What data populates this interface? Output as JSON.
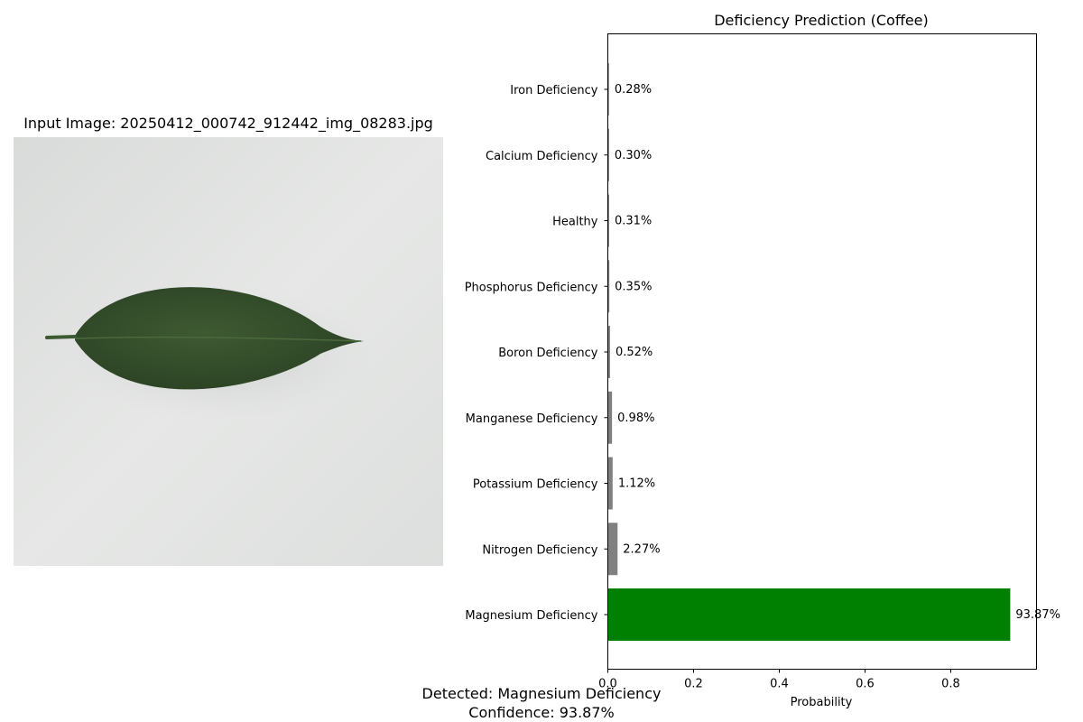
{
  "image_panel": {
    "title": "Input Image: 20250412_000742_912442_img_08283.jpg"
  },
  "chart_data": {
    "type": "bar",
    "orientation": "horizontal",
    "title": "Deficiency Prediction (Coffee)",
    "xlabel": "Probability",
    "ylabel": "",
    "xlim": [
      0,
      1.0
    ],
    "xticks": [
      "0.0",
      "0.2",
      "0.4",
      "0.6",
      "0.8"
    ],
    "categories": [
      "Iron Deficiency",
      "Calcium Deficiency",
      "Healthy",
      "Phosphorus Deficiency",
      "Boron Deficiency",
      "Manganese Deficiency",
      "Potassium Deficiency",
      "Nitrogen Deficiency",
      "Magnesium Deficiency"
    ],
    "values": [
      0.0028,
      0.003,
      0.0031,
      0.0035,
      0.0052,
      0.0098,
      0.0112,
      0.0227,
      0.9387
    ],
    "value_labels": [
      "0.28%",
      "0.30%",
      "0.31%",
      "0.35%",
      "0.52%",
      "0.98%",
      "1.12%",
      "2.27%",
      "93.87%"
    ],
    "colors": [
      "#808080",
      "#808080",
      "#808080",
      "#808080",
      "#808080",
      "#808080",
      "#808080",
      "#808080",
      "#008000"
    ],
    "grid": false,
    "legend": "none"
  },
  "result": {
    "detected": "Detected: Magnesium Deficiency",
    "confidence": "Confidence: 93.87%"
  }
}
